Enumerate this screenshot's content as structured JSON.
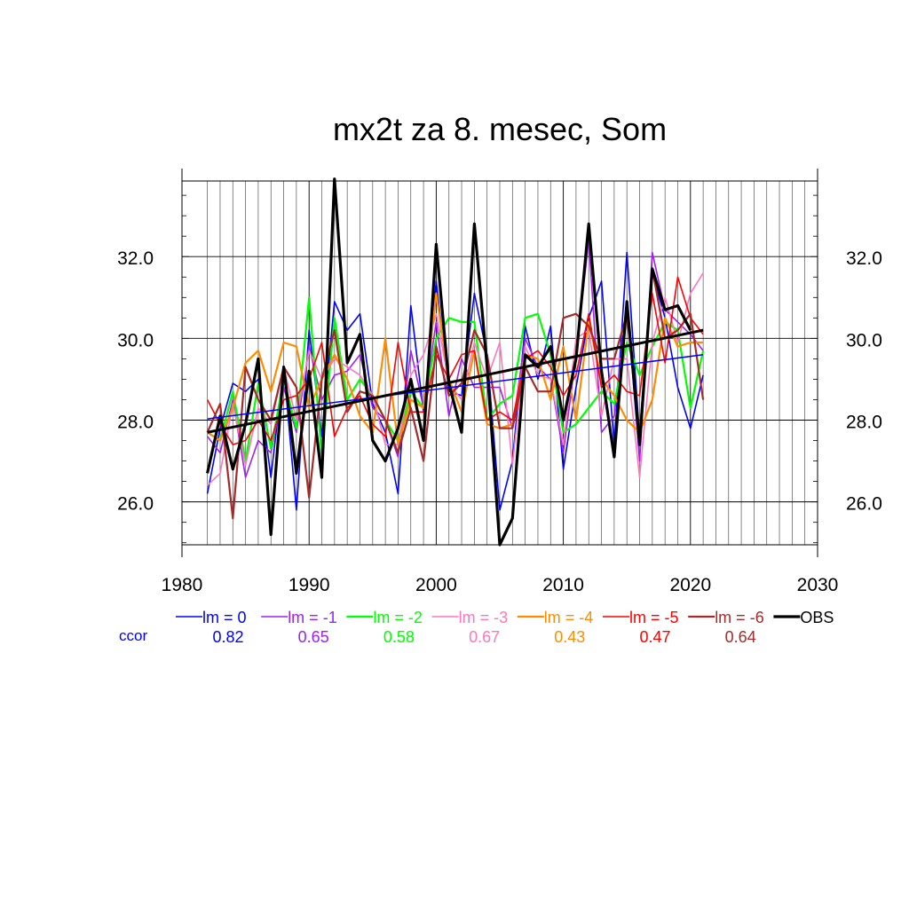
{
  "chart_data": {
    "type": "line",
    "title": "mx2t za 8. mesec, Som",
    "xlabel": "",
    "ylabel": "",
    "xlim": [
      1980,
      2030
    ],
    "ylim": [
      24.95,
      33.85
    ],
    "x_ticks": [
      1980,
      1990,
      2000,
      2010,
      2020,
      2030
    ],
    "x_tick_labels": [
      "1980",
      "1990",
      "2000",
      "2010",
      "2020",
      "2030"
    ],
    "y_ticks": [
      26,
      28,
      30,
      32
    ],
    "y_tick_labels": [
      "26.0",
      "28.0",
      "30.0",
      "32.0"
    ],
    "grid": true,
    "legend_position": "bottom",
    "ccor_label": "ccor",
    "x": [
      1982,
      1983,
      1984,
      1985,
      1986,
      1987,
      1988,
      1989,
      1990,
      1991,
      1992,
      1993,
      1994,
      1995,
      1996,
      1997,
      1998,
      1999,
      2000,
      2001,
      2002,
      2003,
      2004,
      2005,
      2006,
      2007,
      2008,
      2009,
      2010,
      2011,
      2012,
      2013,
      2014,
      2015,
      2016,
      2017,
      2018,
      2019,
      2020,
      2021
    ],
    "series": [
      {
        "name": "lm = 0",
        "ccor": "0.82",
        "color": "#0000ff",
        "width": 1.6,
        "values": [
          26.2,
          27.8,
          28.9,
          28.7,
          29.0,
          26.6,
          29.3,
          25.8,
          30.2,
          27.6,
          30.9,
          30.2,
          30.6,
          28.4,
          27.7,
          26.2,
          30.8,
          28.2,
          31.4,
          28.7,
          28.6,
          31.1,
          29.6,
          25.8,
          27.0,
          30.3,
          29.0,
          30.3,
          26.8,
          28.8,
          30.5,
          31.4,
          27.4,
          32.1,
          27.6,
          31.6,
          30.5,
          28.8,
          27.8,
          29.1
        ],
        "trend": [
          28.03,
          29.6
        ]
      },
      {
        "name": "lm = -1",
        "ccor": "0.65",
        "color": "#a020f0",
        "width": 1.6,
        "values": [
          27.6,
          27.2,
          28.5,
          26.6,
          27.5,
          27.2,
          28.8,
          27.7,
          29.8,
          28.5,
          29.1,
          29.2,
          29.6,
          28.3,
          28.0,
          27.1,
          29.7,
          28.3,
          30.4,
          28.1,
          29.5,
          28.8,
          28.8,
          28.8,
          27.8,
          30.0,
          29.3,
          29.0,
          27.2,
          29.6,
          32.4,
          27.7,
          28.1,
          30.9,
          27.0,
          32.1,
          30.7,
          30.4,
          30.1,
          29.7
        ],
        "trend": null
      },
      {
        "name": "lm = -2",
        "ccor": "0.58",
        "color": "#00ff00",
        "width": 2.2,
        "values": [
          27.7,
          27.5,
          28.7,
          27.0,
          28.9,
          27.3,
          29.0,
          27.8,
          31.0,
          27.1,
          30.5,
          28.5,
          29.0,
          28.6,
          28.0,
          27.5,
          28.7,
          28.3,
          30.0,
          30.5,
          30.4,
          30.4,
          28.0,
          28.4,
          28.6,
          30.5,
          30.6,
          29.6,
          27.7,
          27.9,
          28.3,
          28.7,
          28.4,
          29.9,
          29.1,
          29.8,
          30.4,
          30.2,
          28.3,
          29.7
        ],
        "trend": null
      },
      {
        "name": "lm = -3",
        "ccor": "0.67",
        "color": "#ff77bb",
        "width": 1.6,
        "values": [
          26.4,
          26.7,
          28.4,
          26.9,
          28.3,
          27.9,
          29.3,
          28.0,
          29.7,
          29.0,
          29.5,
          29.3,
          29.1,
          28.6,
          27.4,
          27.4,
          29.1,
          29.6,
          30.6,
          28.9,
          28.5,
          29.9,
          29.0,
          29.9,
          26.9,
          29.8,
          29.1,
          29.0,
          27.4,
          30.0,
          30.2,
          28.1,
          29.5,
          29.5,
          26.6,
          29.9,
          31.0,
          29.9,
          31.1,
          31.6
        ],
        "trend": null
      },
      {
        "name": "lm = -4",
        "ccor": "0.43",
        "color": "#ff8c00",
        "width": 2.2,
        "values": [
          27.7,
          27.5,
          28.3,
          29.4,
          29.7,
          28.7,
          29.9,
          29.8,
          28.3,
          29.0,
          29.6,
          29.0,
          28.1,
          27.7,
          30.0,
          27.4,
          28.5,
          28.3,
          31.1,
          29.0,
          28.2,
          29.7,
          27.9,
          27.8,
          27.9,
          29.6,
          29.5,
          28.5,
          29.8,
          28.0,
          30.4,
          29.0,
          28.6,
          28.0,
          27.7,
          28.5,
          30.5,
          29.8,
          29.9,
          29.9
        ],
        "trend": null
      },
      {
        "name": "lm = -5",
        "ccor": "0.47",
        "color": "#ff0000",
        "width": 1.6,
        "values": [
          28.5,
          27.9,
          27.4,
          27.5,
          28.0,
          27.5,
          28.5,
          28.6,
          29.0,
          29.9,
          27.6,
          28.3,
          28.6,
          27.9,
          27.6,
          29.9,
          28.2,
          28.2,
          29.6,
          29.0,
          29.6,
          29.7,
          28.0,
          28.2,
          28.0,
          29.5,
          29.7,
          29.3,
          28.6,
          29.1,
          30.6,
          28.8,
          29.1,
          28.7,
          28.6,
          31.1,
          29.4,
          31.5,
          30.5,
          30.1
        ],
        "trend": null
      },
      {
        "name": "lm = -6",
        "ccor": "0.64",
        "color": "#a52a2a",
        "width": 2.2,
        "values": [
          27.7,
          28.4,
          25.6,
          29.3,
          28.5,
          28.0,
          29.3,
          28.8,
          26.1,
          29.0,
          30.2,
          28.2,
          28.7,
          28.6,
          28.0,
          27.2,
          28.3,
          27.0,
          29.8,
          28.6,
          28.9,
          30.2,
          29.6,
          27.8,
          27.8,
          29.3,
          28.7,
          28.7,
          30.5,
          30.6,
          30.3,
          29.5,
          29.5,
          30.6,
          27.6,
          31.7,
          30.0,
          30.2,
          30.6,
          28.5
        ],
        "trend": null
      },
      {
        "name": "OBS",
        "ccor": "",
        "color": "#000000",
        "width": 3.2,
        "values": [
          26.7,
          28.1,
          26.8,
          27.9,
          29.5,
          25.2,
          29.3,
          26.7,
          29.2,
          26.6,
          33.9,
          29.4,
          30.1,
          27.5,
          27.0,
          27.8,
          29.0,
          27.5,
          32.3,
          28.9,
          27.7,
          32.8,
          29.3,
          24.95,
          25.6,
          29.6,
          29.3,
          29.8,
          28.0,
          29.5,
          32.8,
          29.2,
          27.1,
          30.9,
          27.4,
          31.7,
          30.7,
          30.8,
          30.2,
          null
        ],
        "trend": [
          27.7,
          30.2
        ]
      }
    ]
  }
}
